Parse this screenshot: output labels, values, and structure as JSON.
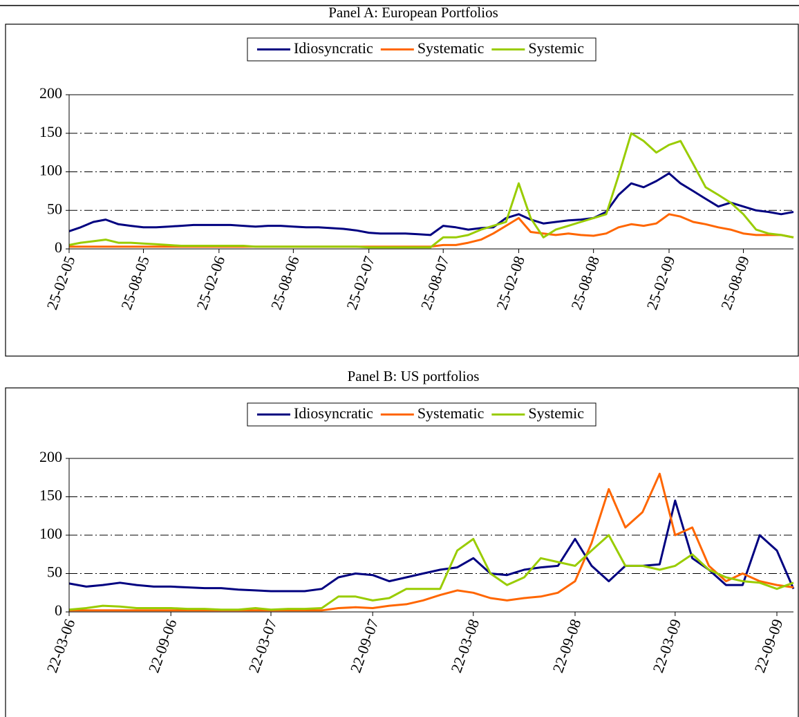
{
  "chart_data": [
    {
      "type": "line",
      "title": "Panel A: European Portfolios",
      "x": [
        "25-02-05",
        "25-03-05",
        "25-04-05",
        "25-05-05",
        "25-06-05",
        "25-07-05",
        "25-08-05",
        "25-09-05",
        "25-10-05",
        "25-11-05",
        "25-12-05",
        "25-01-06",
        "25-02-06",
        "25-03-06",
        "25-04-06",
        "25-05-06",
        "25-06-06",
        "25-07-06",
        "25-08-06",
        "25-09-06",
        "25-10-06",
        "25-11-06",
        "25-12-06",
        "25-01-07",
        "25-02-07",
        "25-03-07",
        "25-04-07",
        "25-05-07",
        "25-06-07",
        "25-07-07",
        "25-08-07",
        "25-09-07",
        "25-10-07",
        "25-11-07",
        "25-12-07",
        "25-01-08",
        "25-02-08",
        "25-03-08",
        "25-04-08",
        "25-05-08",
        "25-06-08",
        "25-07-08",
        "25-08-08",
        "25-09-08",
        "25-10-08",
        "25-11-08",
        "25-12-08",
        "25-01-09",
        "25-02-09",
        "25-03-09",
        "25-04-09",
        "25-05-09",
        "25-06-09",
        "25-07-09",
        "25-08-09",
        "25-09-09",
        "25-10-09",
        "25-11-09",
        "25-12-09"
      ],
      "series": [
        {
          "name": "Idiosyncratic",
          "color": "#000080",
          "values": [
            23,
            28,
            35,
            38,
            32,
            30,
            28,
            28,
            29,
            30,
            31,
            31,
            31,
            31,
            30,
            29,
            30,
            30,
            29,
            28,
            28,
            27,
            26,
            24,
            21,
            20,
            20,
            20,
            19,
            18,
            30,
            28,
            25,
            27,
            28,
            40,
            45,
            38,
            33,
            35,
            37,
            38,
            40,
            48,
            70,
            85,
            80,
            88,
            98,
            85,
            75,
            65,
            55,
            60,
            55,
            50,
            48,
            45,
            48
          ]
        },
        {
          "name": "Systematic",
          "color": "#ff6600",
          "values": [
            3,
            3,
            3,
            3,
            3,
            3,
            3,
            3,
            3,
            3,
            3,
            3,
            3,
            3,
            3,
            3,
            3,
            3,
            3,
            3,
            3,
            3,
            3,
            3,
            3,
            3,
            3,
            3,
            3,
            3,
            5,
            5,
            8,
            12,
            20,
            30,
            40,
            22,
            20,
            18,
            20,
            18,
            17,
            20,
            28,
            32,
            30,
            33,
            45,
            42,
            35,
            32,
            28,
            25,
            20,
            18,
            18,
            18,
            15
          ]
        },
        {
          "name": "Systemic",
          "color": "#99cc00",
          "values": [
            5,
            8,
            10,
            12,
            8,
            8,
            7,
            6,
            5,
            4,
            4,
            4,
            4,
            4,
            4,
            3,
            3,
            3,
            3,
            3,
            3,
            3,
            3,
            3,
            2,
            2,
            2,
            2,
            2,
            2,
            15,
            15,
            18,
            25,
            30,
            35,
            85,
            40,
            15,
            25,
            30,
            35,
            40,
            45,
            95,
            150,
            140,
            125,
            135,
            140,
            110,
            80,
            70,
            60,
            45,
            25,
            20,
            18,
            15
          ]
        }
      ],
      "xlim": [
        "25-02-05",
        "25-12-09"
      ],
      "xticks": [
        "25-02-05",
        "25-08-05",
        "25-02-06",
        "25-08-06",
        "25-02-07",
        "25-08-07",
        "25-02-08",
        "25-08-08",
        "25-02-09",
        "25-08-09"
      ],
      "ylim": [
        0,
        200
      ],
      "yticks": [
        0,
        50,
        100,
        150,
        200
      ],
      "grid": true,
      "legend": "top"
    },
    {
      "type": "line",
      "title": "Panel B: US portfolios",
      "x": [
        "22-03-06",
        "22-04-06",
        "22-05-06",
        "22-06-06",
        "22-07-06",
        "22-08-06",
        "22-09-06",
        "22-10-06",
        "22-11-06",
        "22-12-06",
        "22-01-07",
        "22-02-07",
        "22-03-07",
        "22-04-07",
        "22-05-07",
        "22-06-07",
        "22-07-07",
        "22-08-07",
        "22-09-07",
        "22-10-07",
        "22-11-07",
        "22-12-07",
        "22-01-08",
        "22-02-08",
        "22-03-08",
        "22-04-08",
        "22-05-08",
        "22-06-08",
        "22-07-08",
        "22-08-08",
        "22-09-08",
        "22-10-08",
        "22-11-08",
        "22-12-08",
        "22-01-09",
        "22-02-09",
        "22-03-09",
        "22-04-09",
        "22-05-09",
        "22-06-09",
        "22-07-09",
        "22-08-09",
        "22-09-09",
        "22-10-09"
      ],
      "series": [
        {
          "name": "Idiosyncratic",
          "color": "#000080",
          "values": [
            37,
            33,
            35,
            38,
            35,
            33,
            33,
            32,
            31,
            31,
            29,
            28,
            27,
            27,
            27,
            30,
            45,
            50,
            48,
            40,
            45,
            50,
            55,
            58,
            70,
            50,
            48,
            55,
            58,
            60,
            95,
            60,
            40,
            60,
            60,
            62,
            145,
            70,
            55,
            35,
            35,
            100,
            80,
            30
          ]
        },
        {
          "name": "Systematic",
          "color": "#ff6600",
          "values": [
            2,
            2,
            2,
            2,
            2,
            2,
            2,
            2,
            2,
            2,
            2,
            2,
            2,
            2,
            2,
            2,
            5,
            6,
            5,
            8,
            10,
            15,
            22,
            28,
            25,
            18,
            15,
            18,
            20,
            25,
            40,
            90,
            160,
            110,
            130,
            180,
            100,
            110,
            60,
            40,
            50,
            40,
            35,
            32
          ]
        },
        {
          "name": "Systemic",
          "color": "#99cc00",
          "values": [
            3,
            5,
            8,
            7,
            5,
            5,
            5,
            4,
            4,
            3,
            3,
            5,
            3,
            4,
            4,
            5,
            20,
            20,
            15,
            18,
            30,
            30,
            30,
            80,
            95,
            50,
            35,
            45,
            70,
            65,
            60,
            80,
            100,
            60,
            60,
            55,
            60,
            75,
            55,
            45,
            40,
            38,
            30,
            38
          ]
        }
      ],
      "xlim": [
        "22-03-06",
        "22-10-09"
      ],
      "xticks": [
        "22-03-06",
        "22-09-06",
        "22-03-07",
        "22-09-07",
        "22-03-08",
        "22-09-08",
        "22-03-09",
        "22-09-09"
      ],
      "ylim": [
        0,
        200
      ],
      "yticks": [
        0,
        50,
        100,
        150,
        200
      ],
      "grid": true,
      "legend": "top"
    }
  ]
}
